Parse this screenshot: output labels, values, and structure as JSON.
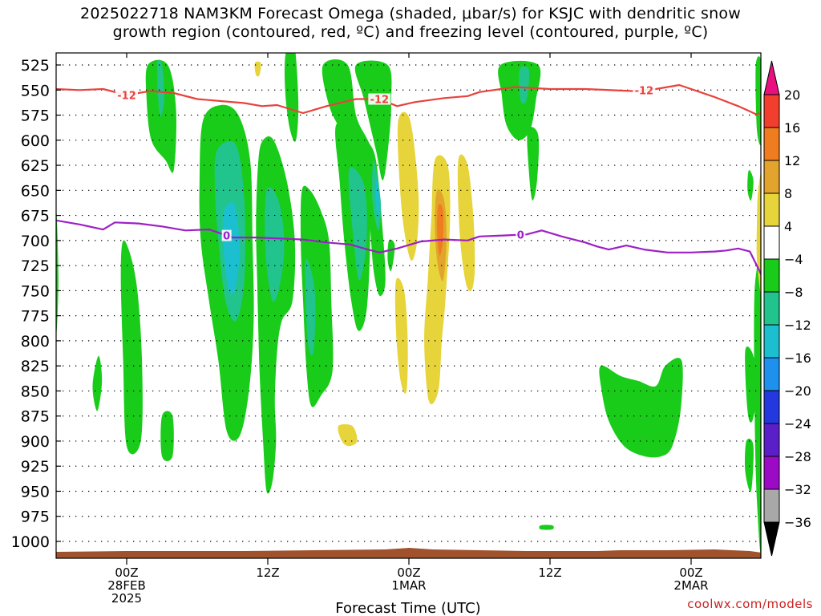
{
  "title_line1": "2025022718 NAM3KM Forecast Omega (shaded, μbar/s) for KSJC with dendritic snow",
  "title_line2": "growth region (contoured, red, ºC) and freezing level (contoured, purple, ºC)",
  "credit": "coolwx.com/models",
  "colors": {
    "temp_contour": "#e8423c",
    "freezing_contour": "#9d1fc7",
    "terrain": "#a0522d",
    "grid": "#000000"
  },
  "chart_data": {
    "type": "heatmap",
    "xlabel": "Forecast Time (UTC)",
    "y_axis": {
      "type": "pressure",
      "range": [
        525,
        1000
      ],
      "ticks": [
        525,
        550,
        575,
        600,
        625,
        650,
        675,
        700,
        725,
        750,
        775,
        800,
        825,
        850,
        875,
        900,
        925,
        950,
        975,
        1000
      ]
    },
    "x_axis": {
      "range_hours": [
        -6,
        54
      ],
      "ticks": [
        {
          "hour": 0,
          "labels": [
            "00Z",
            "28FEB",
            "2025"
          ]
        },
        {
          "hour": 12,
          "labels": [
            "12Z"
          ]
        },
        {
          "hour": 24,
          "labels": [
            "00Z",
            "1MAR"
          ]
        },
        {
          "hour": 36,
          "labels": [
            "12Z"
          ]
        },
        {
          "hour": 48,
          "labels": [
            "00Z",
            "2MAR"
          ]
        }
      ]
    },
    "colorbar": {
      "labels": [
        "20",
        "16",
        "12",
        "8",
        "4",
        "−4",
        "−8",
        "−12",
        "−16",
        "−20",
        "−24",
        "−28",
        "−32",
        "−36"
      ],
      "bins": [
        {
          "from": 20,
          "to": 24,
          "color": "#e8107e"
        },
        {
          "from": 16,
          "to": 20,
          "color": "#f23e2c"
        },
        {
          "from": 12,
          "to": 16,
          "color": "#ef7d20"
        },
        {
          "from": 8,
          "to": 12,
          "color": "#e2a42c"
        },
        {
          "from": 4,
          "to": 8,
          "color": "#e6d43a"
        },
        {
          "from": -4,
          "to": 4,
          "color": "#ffffff"
        },
        {
          "from": -8,
          "to": -4,
          "color": "#19cc19"
        },
        {
          "from": -12,
          "to": -8,
          "color": "#22c48e"
        },
        {
          "from": -16,
          "to": -12,
          "color": "#1cbfcf"
        },
        {
          "from": -20,
          "to": -16,
          "color": "#1e90ee"
        },
        {
          "from": -24,
          "to": -20,
          "color": "#2438e0"
        },
        {
          "from": -28,
          "to": -24,
          "color": "#5a1fc8"
        },
        {
          "from": -32,
          "to": -28,
          "color": "#9b0bc6"
        },
        {
          "from": -36,
          "to": -32,
          "color": "#a8a8a8"
        }
      ]
    },
    "contours": [
      {
        "name": "dendritic snow growth region",
        "level_label": "-12",
        "unit": "ºC",
        "color": "#e8423c",
        "points": [
          [
            -6,
            549
          ],
          [
            -4,
            550
          ],
          [
            -2,
            549
          ],
          [
            0,
            555
          ],
          [
            2,
            551
          ],
          [
            4,
            553
          ],
          [
            6,
            559
          ],
          [
            8,
            561
          ],
          [
            10,
            563
          ],
          [
            11.5,
            566
          ],
          [
            12.8,
            565
          ],
          [
            15,
            573
          ],
          [
            17,
            566
          ],
          [
            19.5,
            559
          ],
          [
            21.5,
            559
          ],
          [
            23,
            566
          ],
          [
            24.5,
            562
          ],
          [
            27,
            558
          ],
          [
            29,
            556
          ],
          [
            30,
            552
          ],
          [
            33,
            547
          ],
          [
            36,
            549
          ],
          [
            39,
            549
          ],
          [
            43,
            551
          ],
          [
            45,
            549
          ],
          [
            47,
            545
          ],
          [
            50,
            557
          ],
          [
            52,
            566
          ],
          [
            53.5,
            574
          ],
          [
            54,
            573
          ]
        ],
        "label_hours": [
          0,
          21.5,
          44
        ]
      },
      {
        "name": "freezing level",
        "level_label": "0",
        "unit": "ºC",
        "color": "#9d1fc7",
        "points": [
          [
            -6,
            680
          ],
          [
            -4,
            684
          ],
          [
            -2,
            689
          ],
          [
            -1,
            682
          ],
          [
            1,
            683
          ],
          [
            3,
            686
          ],
          [
            5,
            690
          ],
          [
            7,
            689
          ],
          [
            8,
            693
          ],
          [
            9,
            697
          ],
          [
            11,
            697
          ],
          [
            13,
            698
          ],
          [
            15,
            699
          ],
          [
            17,
            702
          ],
          [
            19,
            704
          ],
          [
            20.5,
            709
          ],
          [
            21.5,
            712
          ],
          [
            23,
            708
          ],
          [
            25,
            701
          ],
          [
            27,
            699
          ],
          [
            29,
            700
          ],
          [
            30,
            696
          ],
          [
            32,
            695
          ],
          [
            34,
            694
          ],
          [
            35.3,
            690
          ],
          [
            37,
            696
          ],
          [
            39,
            702
          ],
          [
            40,
            706
          ],
          [
            41,
            709
          ],
          [
            42.5,
            705
          ],
          [
            44,
            709
          ],
          [
            46,
            712
          ],
          [
            48,
            712
          ],
          [
            50,
            711
          ],
          [
            51,
            710
          ],
          [
            52,
            708
          ],
          [
            53,
            711
          ],
          [
            53.8,
            730
          ],
          [
            54,
            735
          ]
        ],
        "label_hours": [
          8.5,
          33.5
        ]
      }
    ],
    "terrain_pressure": 1010
  }
}
